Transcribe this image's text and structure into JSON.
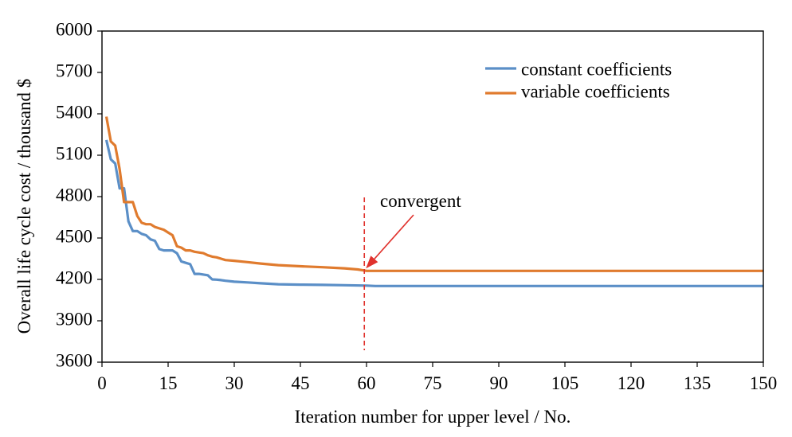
{
  "chart_data": {
    "type": "line",
    "xlabel": "Iteration number for upper level / No.",
    "ylabel": "Overall life cycle cost / thousand $",
    "xlim": [
      0,
      150
    ],
    "ylim": [
      3600,
      6000
    ],
    "xticks": [
      0,
      15,
      30,
      45,
      60,
      75,
      90,
      105,
      120,
      135,
      150
    ],
    "yticks": [
      3600,
      3900,
      4200,
      4500,
      4800,
      5100,
      5400,
      5700,
      6000
    ],
    "grid": false,
    "legend_position": "top-right",
    "series": [
      {
        "name": "constant coefficients",
        "color": "#5B8FC7",
        "points": [
          [
            1,
            5210
          ],
          [
            2,
            5070
          ],
          [
            3,
            5040
          ],
          [
            4,
            4860
          ],
          [
            5,
            4860
          ],
          [
            6,
            4620
          ],
          [
            7,
            4550
          ],
          [
            8,
            4550
          ],
          [
            9,
            4530
          ],
          [
            10,
            4520
          ],
          [
            11,
            4490
          ],
          [
            12,
            4480
          ],
          [
            13,
            4420
          ],
          [
            14,
            4410
          ],
          [
            15,
            4410
          ],
          [
            16,
            4410
          ],
          [
            17,
            4390
          ],
          [
            18,
            4330
          ],
          [
            19,
            4320
          ],
          [
            20,
            4310
          ],
          [
            21,
            4240
          ],
          [
            22,
            4240
          ],
          [
            23,
            4235
          ],
          [
            24,
            4230
          ],
          [
            25,
            4200
          ],
          [
            26,
            4198
          ],
          [
            27,
            4195
          ],
          [
            28,
            4190
          ],
          [
            30,
            4183
          ],
          [
            33,
            4178
          ],
          [
            36,
            4172
          ],
          [
            40,
            4165
          ],
          [
            45,
            4162
          ],
          [
            50,
            4160
          ],
          [
            55,
            4158
          ],
          [
            60,
            4155
          ],
          [
            62,
            4152
          ],
          [
            70,
            4152
          ],
          [
            90,
            4152
          ],
          [
            120,
            4152
          ],
          [
            150,
            4152
          ]
        ]
      },
      {
        "name": "variable coefficients",
        "color": "#E07B2E",
        "points": [
          [
            1,
            5380
          ],
          [
            2,
            5200
          ],
          [
            3,
            5170
          ],
          [
            4,
            5000
          ],
          [
            5,
            4760
          ],
          [
            6,
            4760
          ],
          [
            7,
            4760
          ],
          [
            8,
            4660
          ],
          [
            9,
            4610
          ],
          [
            10,
            4600
          ],
          [
            11,
            4600
          ],
          [
            12,
            4580
          ],
          [
            13,
            4570
          ],
          [
            14,
            4560
          ],
          [
            15,
            4540
          ],
          [
            16,
            4520
          ],
          [
            17,
            4440
          ],
          [
            18,
            4430
          ],
          [
            19,
            4410
          ],
          [
            20,
            4410
          ],
          [
            21,
            4400
          ],
          [
            22,
            4395
          ],
          [
            23,
            4390
          ],
          [
            24,
            4375
          ],
          [
            25,
            4365
          ],
          [
            26,
            4360
          ],
          [
            27,
            4350
          ],
          [
            28,
            4340
          ],
          [
            30,
            4335
          ],
          [
            33,
            4325
          ],
          [
            36,
            4315
          ],
          [
            40,
            4303
          ],
          [
            45,
            4295
          ],
          [
            50,
            4288
          ],
          [
            55,
            4280
          ],
          [
            58,
            4272
          ],
          [
            60,
            4262
          ],
          [
            70,
            4262
          ],
          [
            90,
            4262
          ],
          [
            120,
            4262
          ],
          [
            150,
            4262
          ]
        ]
      }
    ],
    "annotation": {
      "text": "convergent",
      "x": 59.5
    }
  }
}
